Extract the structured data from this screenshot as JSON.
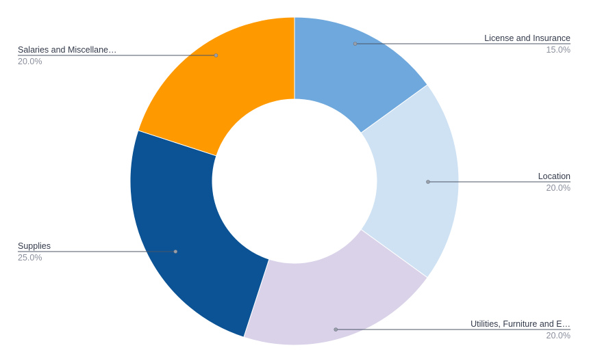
{
  "chart_data": {
    "type": "pie",
    "donut": true,
    "title": "",
    "slices": [
      {
        "label": "License and Insurance",
        "value": 15.0,
        "pct_label": "15.0%",
        "color": "#6fa8dc",
        "side": "right"
      },
      {
        "label": "Location",
        "value": 20.0,
        "pct_label": "20.0%",
        "color": "#cfe2f3",
        "side": "right"
      },
      {
        "label": "Utilities, Furniture and E…",
        "value": 20.0,
        "pct_label": "20.0%",
        "color": "#d9d2e9",
        "side": "right"
      },
      {
        "label": "Supplies",
        "value": 25.0,
        "pct_label": "25.0%",
        "color": "#0b5394",
        "side": "left"
      },
      {
        "label": "Salaries and Miscellane…",
        "value": 20.0,
        "pct_label": "20.0%",
        "color": "#ff9900",
        "side": "left"
      }
    ]
  }
}
